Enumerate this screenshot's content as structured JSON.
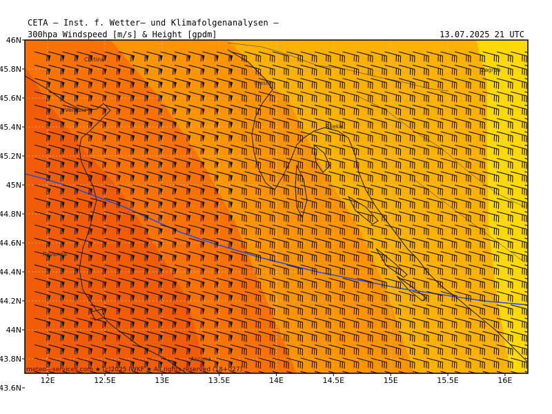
{
  "header": {
    "title": "CETA — Inst. f. Wetter— und Klimafolgenanalysen —",
    "product": "300hpa Windspeed [m/s] & Height [gpdm]",
    "valid": "13.07.2025  21 UTC"
  },
  "map": {
    "lat_range": [
      43.7,
      46.0
    ],
    "lon_range": [
      11.8,
      16.2
    ],
    "lat_ticks": [
      "46N",
      "45.8N",
      "45.6N",
      "45.4N",
      "45.2N",
      "45N",
      "44.8N",
      "44.6N",
      "44.4N",
      "44.2N",
      "44N",
      "43.8N",
      "43.6N"
    ],
    "lon_ticks": [
      "12E",
      "12.5E",
      "13E",
      "13.5E",
      "14E",
      "14.5E",
      "15E",
      "15.5E",
      "16E"
    ],
    "wind_direction_deg": 285,
    "colors": {
      "band_darkest": "#f25c05",
      "band_dark": "#fb7204",
      "band_mid": "#fd9400",
      "band_light": "#fdb100",
      "band_lightest": "#ffd900",
      "coast": "#222222",
      "height_contour": "#2b4cd8",
      "grid": "#d9c7a8"
    },
    "cities": [
      {
        "name": "Cortina"
      },
      {
        "name": "Venezia"
      },
      {
        "name": "Trieste"
      },
      {
        "name": "Rijeka"
      },
      {
        "name": "Zagreb"
      },
      {
        "name": "Ravenna"
      },
      {
        "name": "Ancona"
      }
    ]
  },
  "footer": {
    "credit": "meteo—services.com ★ (c)2025 IWKF ★ All rights reserved (18+027)"
  }
}
